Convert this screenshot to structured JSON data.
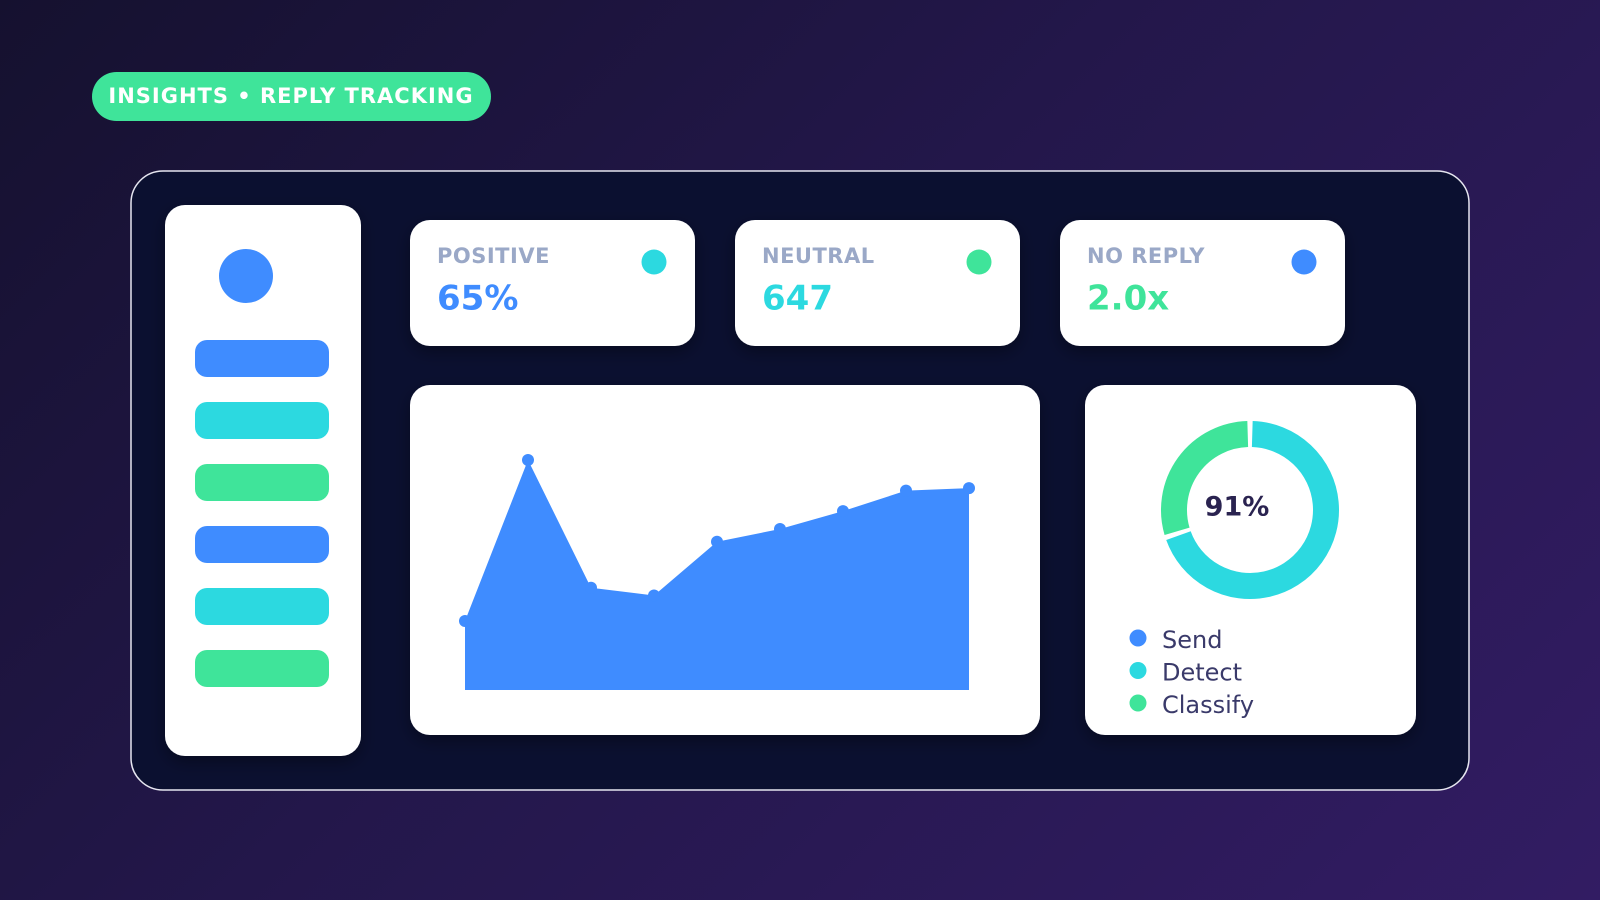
{
  "badge": "INSIGHTS • REPLY TRACKING",
  "kpis": [
    {
      "label": "POSITIVE",
      "value": "65%",
      "value_color": "#3f8cff",
      "dot_color": "#2cd9e0"
    },
    {
      "label": "NEUTRAL",
      "value": "647",
      "value_color": "#2cd9e0",
      "dot_color": "#3fe49a"
    },
    {
      "label": "NO REPLY",
      "value": "2.0x",
      "value_color": "#3fe49a",
      "dot_color": "#3f8cff"
    }
  ],
  "chart_data": [
    {
      "type": "area",
      "values": [
        27,
        90,
        40,
        37,
        58,
        63,
        70,
        78,
        79
      ],
      "color": "#3f8cff"
    },
    {
      "type": "donut",
      "center_label": "91%",
      "categories": [
        "Send",
        "Detect",
        "Classify"
      ],
      "values": [
        0,
        70,
        30
      ],
      "colors": [
        "#3f8cff",
        "#2cd9e0",
        "#3fe49a"
      ]
    }
  ]
}
